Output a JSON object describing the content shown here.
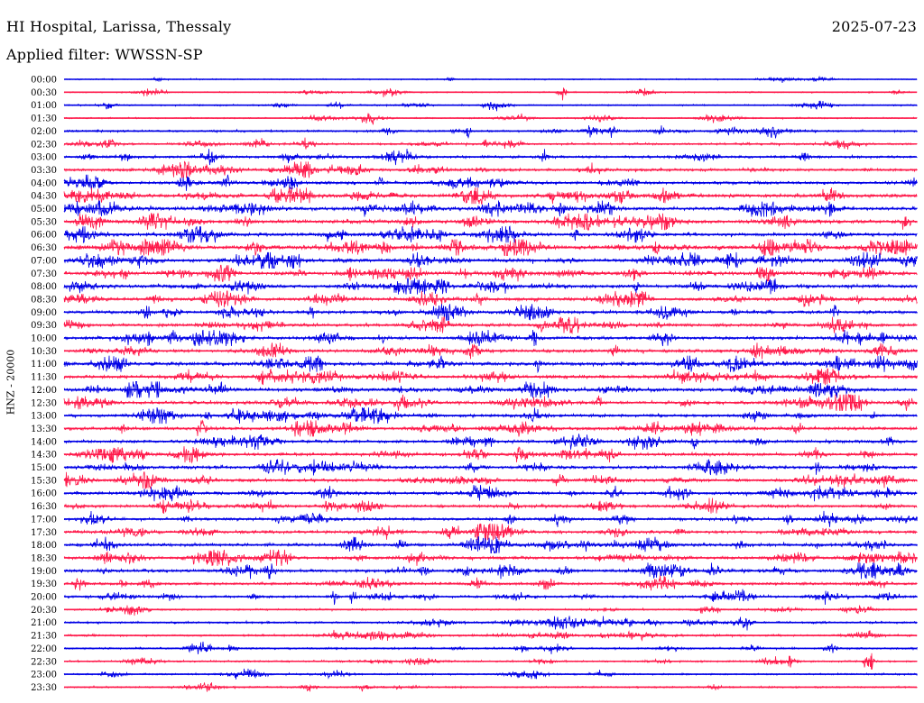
{
  "header": {
    "station": "HI Hospital, Larissa, Thessaly",
    "date": "2025-07-23",
    "filter": "Applied filter: WWSSN-SP"
  },
  "chart_data": {
    "type": "line",
    "ylabel": "HNZ - 20000",
    "colors": [
      "#0000e6",
      "#ff1a4b"
    ],
    "rows": [
      {
        "time": "00:00",
        "activity": 0.05
      },
      {
        "time": "00:30",
        "activity": 0.1
      },
      {
        "time": "01:00",
        "activity": 0.15
      },
      {
        "time": "01:30",
        "activity": 0.12
      },
      {
        "time": "02:00",
        "activity": 0.3
      },
      {
        "time": "02:30",
        "activity": 0.3
      },
      {
        "time": "03:00",
        "activity": 0.4
      },
      {
        "time": "03:30",
        "activity": 0.5
      },
      {
        "time": "04:00",
        "activity": 0.55
      },
      {
        "time": "04:30",
        "activity": 0.75
      },
      {
        "time": "05:00",
        "activity": 0.7
      },
      {
        "time": "05:30",
        "activity": 0.75
      },
      {
        "time": "06:00",
        "activity": 0.65
      },
      {
        "time": "06:30",
        "activity": 0.85
      },
      {
        "time": "07:00",
        "activity": 0.75
      },
      {
        "time": "07:30",
        "activity": 0.7
      },
      {
        "time": "08:00",
        "activity": 0.65
      },
      {
        "time": "08:30",
        "activity": 0.6
      },
      {
        "time": "09:00",
        "activity": 0.6
      },
      {
        "time": "09:30",
        "activity": 0.6
      },
      {
        "time": "10:00",
        "activity": 0.6
      },
      {
        "time": "10:30",
        "activity": 0.6
      },
      {
        "time": "11:00",
        "activity": 0.7
      },
      {
        "time": "11:30",
        "activity": 0.6
      },
      {
        "time": "12:00",
        "activity": 0.6
      },
      {
        "time": "12:30",
        "activity": 0.6
      },
      {
        "time": "13:00",
        "activity": 0.55
      },
      {
        "time": "13:30",
        "activity": 0.55
      },
      {
        "time": "14:00",
        "activity": 0.55
      },
      {
        "time": "14:30",
        "activity": 0.55
      },
      {
        "time": "15:00",
        "activity": 0.55
      },
      {
        "time": "15:30",
        "activity": 0.55
      },
      {
        "time": "16:00",
        "activity": 0.6
      },
      {
        "time": "16:30",
        "activity": 0.55
      },
      {
        "time": "17:00",
        "activity": 0.5
      },
      {
        "time": "17:30",
        "activity": 0.6
      },
      {
        "time": "18:00",
        "activity": 0.55
      },
      {
        "time": "18:30",
        "activity": 0.55
      },
      {
        "time": "19:00",
        "activity": 0.55
      },
      {
        "time": "19:30",
        "activity": 0.45
      },
      {
        "time": "20:00",
        "activity": 0.4
      },
      {
        "time": "20:30",
        "activity": 0.2
      },
      {
        "time": "21:00",
        "activity": 0.3
      },
      {
        "time": "21:30",
        "activity": 0.3
      },
      {
        "time": "22:00",
        "activity": 0.25
      },
      {
        "time": "22:30",
        "activity": 0.25
      },
      {
        "time": "23:00",
        "activity": 0.2
      },
      {
        "time": "23:30",
        "activity": 0.2
      }
    ]
  }
}
